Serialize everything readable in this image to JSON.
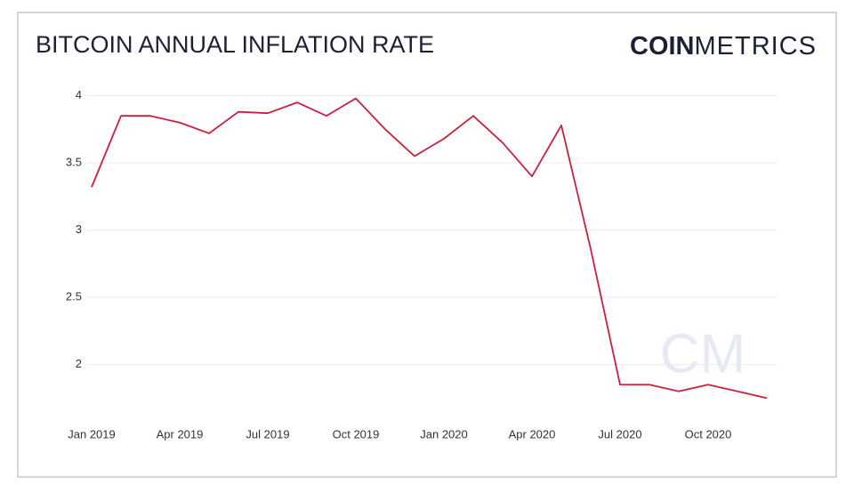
{
  "chart_data": {
    "type": "line",
    "title": "BITCOIN ANNUAL INFLATION RATE",
    "logo": {
      "bold": "COIN",
      "light": "METRICS"
    },
    "watermark": "CM",
    "x": [
      "2019-01",
      "2019-02",
      "2019-03",
      "2019-04",
      "2019-05",
      "2019-06",
      "2019-07",
      "2019-08",
      "2019-09",
      "2019-10",
      "2019-11",
      "2019-12",
      "2020-01",
      "2020-02",
      "2020-03",
      "2020-04",
      "2020-05",
      "2020-06",
      "2020-07",
      "2020-08",
      "2020-09",
      "2020-10",
      "2020-11",
      "2020-12"
    ],
    "series": [
      {
        "color": "#c8203f",
        "values": [
          3.32,
          3.85,
          3.85,
          3.8,
          3.72,
          3.88,
          3.87,
          3.95,
          3.85,
          3.98,
          3.75,
          3.55,
          3.68,
          3.85,
          3.65,
          3.4,
          3.78,
          2.86,
          1.85,
          1.85,
          1.8,
          1.85,
          1.8,
          1.75
        ]
      }
    ],
    "ylim": [
      1.6,
      4.05
    ],
    "yticks": [
      2,
      2.5,
      3,
      3.5,
      4
    ],
    "xticks": [
      {
        "value": "2019-01",
        "label": "Jan 2019"
      },
      {
        "value": "2019-04",
        "label": "Apr 2019"
      },
      {
        "value": "2019-07",
        "label": "Jul 2019"
      },
      {
        "value": "2019-10",
        "label": "Oct 2019"
      },
      {
        "value": "2020-01",
        "label": "Jan 2020"
      },
      {
        "value": "2020-04",
        "label": "Apr 2020"
      },
      {
        "value": "2020-07",
        "label": "Jul 2020"
      },
      {
        "value": "2020-10",
        "label": "Oct 2020"
      }
    ],
    "grid": true
  }
}
